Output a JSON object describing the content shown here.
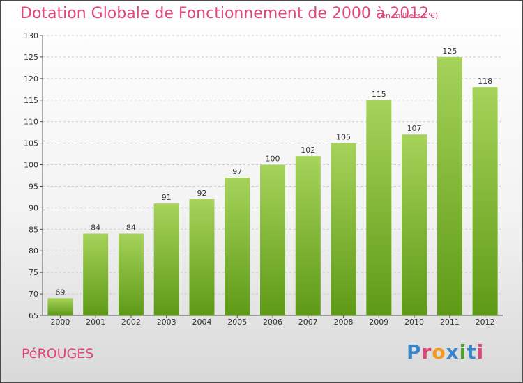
{
  "title": "Dotation Globale de Fonctionnement de 2000 à 2012",
  "subtitle": "(en milliers d'€)",
  "commune": "PéROUGES",
  "logo": {
    "text": "Proxiti",
    "colors": [
      "#3a86c8",
      "#e0457b",
      "#f29a1f",
      "#3a86c8",
      "#4aa02c",
      "#3a86c8",
      "#e0457b"
    ]
  },
  "colors": {
    "title": "#e0457b",
    "bar_light": "#a6d35a",
    "bar_dark": "#5e9a16",
    "grid": "#cccccc",
    "axis": "#555555"
  },
  "chart_data": {
    "type": "bar",
    "title": "Dotation Globale de Fonctionnement de 2000 à 2012",
    "subtitle": "(en milliers d'€)",
    "categories": [
      "2000",
      "2001",
      "2002",
      "2003",
      "2004",
      "2005",
      "2006",
      "2007",
      "2008",
      "2009",
      "2010",
      "2011",
      "2012"
    ],
    "values": [
      69,
      84,
      84,
      91,
      92,
      97,
      100,
      102,
      105,
      115,
      107,
      125,
      118
    ],
    "ylim": [
      65,
      130
    ],
    "yticks": [
      65,
      70,
      75,
      80,
      85,
      90,
      95,
      100,
      105,
      110,
      115,
      120,
      125,
      130
    ],
    "grid": "horizontal dashed",
    "xlabel": "",
    "ylabel": ""
  }
}
